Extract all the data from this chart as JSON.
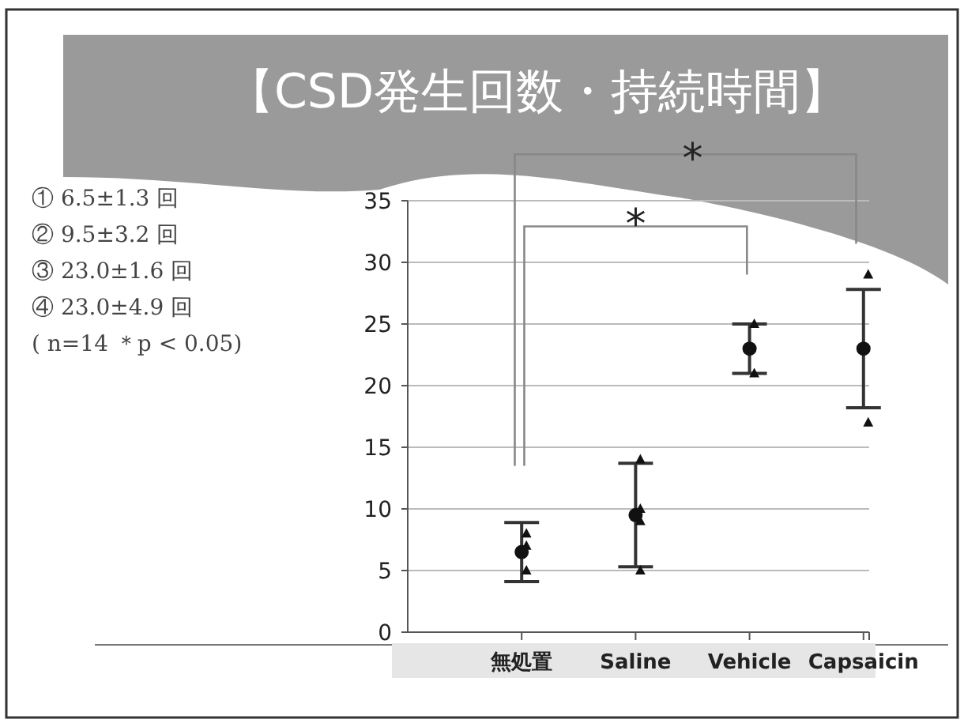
{
  "chart_data": {
    "type": "scatter",
    "title": "【CSD発生回数・持続時間】",
    "categories": [
      "無処置",
      "Saline",
      "Vehicle",
      "Capsaicin"
    ],
    "series": [
      {
        "type": "scatter",
        "color": "#111111",
        "marker": "circle",
        "values": [
          6.5,
          9.5,
          23.0,
          23.0
        ],
        "errors": [
          2.4,
          4.2,
          2.0,
          4.8
        ]
      },
      {
        "type": "scatter",
        "color": "#111111",
        "marker": "triangle",
        "x": [
          "無処置",
          "無処置",
          "無処置",
          "Saline",
          "Saline",
          "Saline",
          "Saline",
          "Vehicle",
          "Vehicle",
          "Capsaicin",
          "Capsaicin"
        ],
        "values": [
          8,
          7,
          5,
          14,
          10,
          9,
          5,
          25,
          21,
          29,
          17
        ]
      }
    ],
    "ylim": [
      0,
      35
    ],
    "yticks": [
      0,
      5,
      10,
      15,
      20,
      25,
      30,
      35
    ],
    "grid": "y",
    "annotations": [
      "① 6.5±1.3 回",
      "② 9.5±3.2 回",
      "③ 23.0±1.6 回",
      "④ 23.0±4.9 回",
      "( n=14 ＊p < 0.05)",
      "*",
      "*"
    ]
  }
}
